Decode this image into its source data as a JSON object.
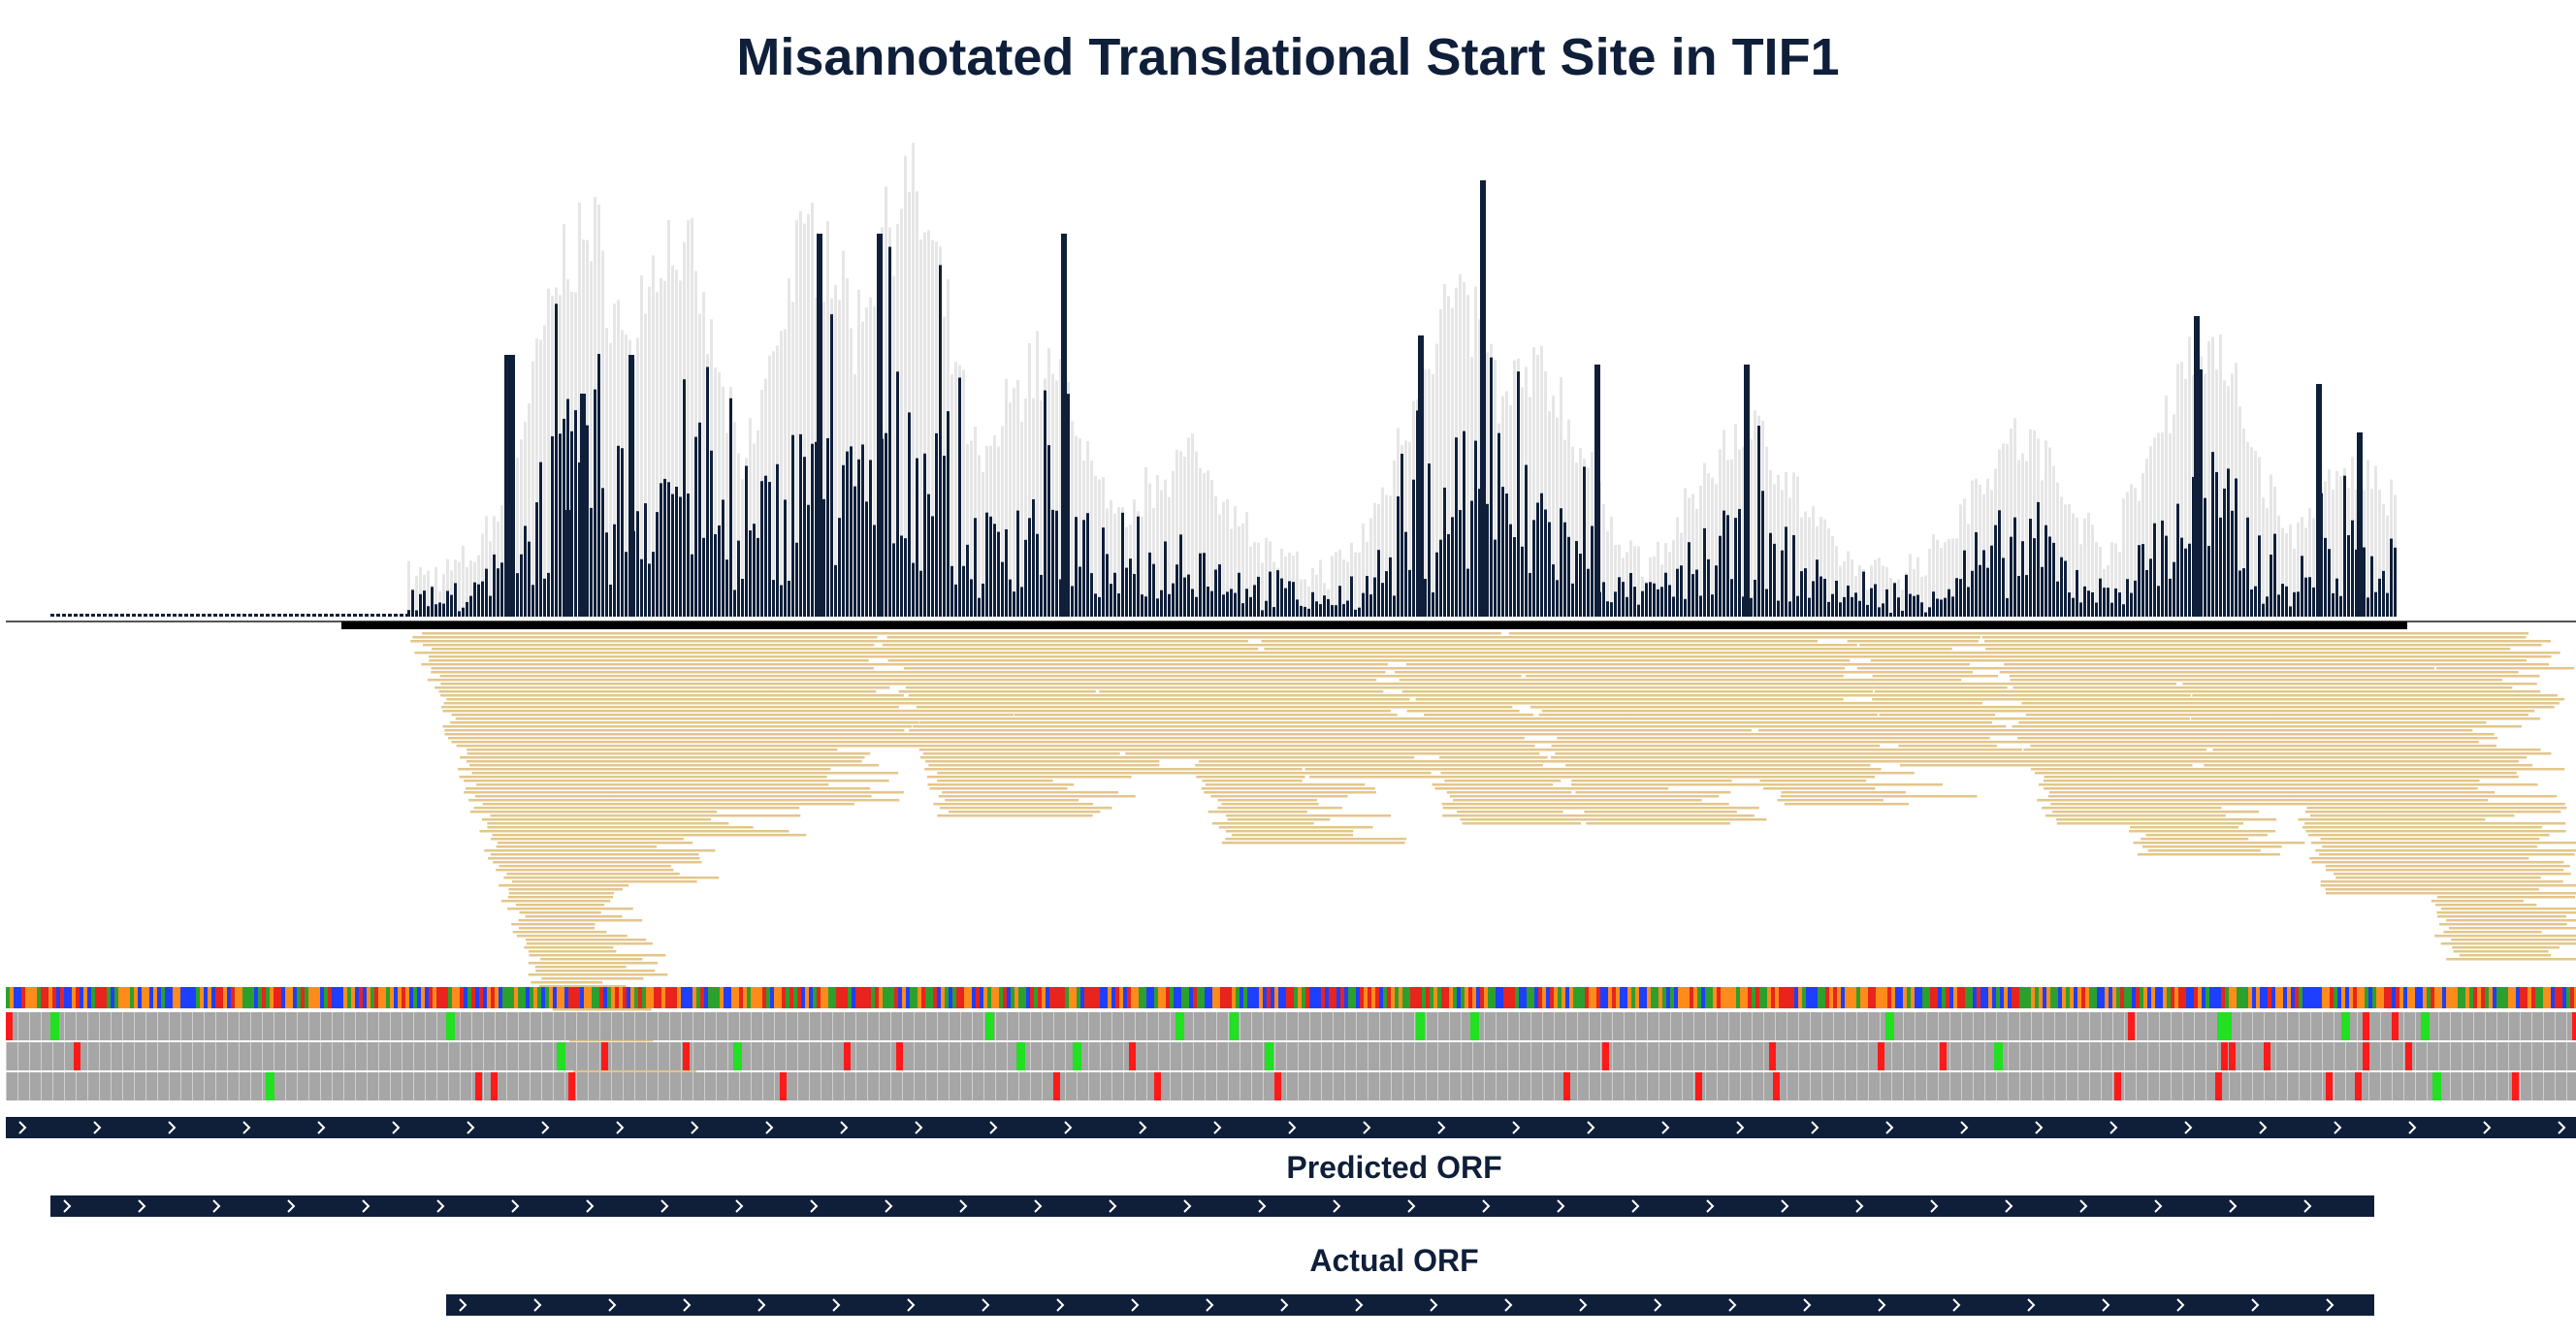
{
  "title": "Misannotated Translational Start Site in TIF1",
  "colors": {
    "navy": "#0f1f3a",
    "coverage": "#e6e6e6",
    "reads": "#e3c68a",
    "codon_gray": "#a6a6a6",
    "start_codon": "#22e022",
    "stop_codon": "#ff1a1a",
    "base_a": "#2ca02c",
    "base_c": "#1f3fff",
    "base_g": "#ff8c1a",
    "base_t": "#e8241d"
  },
  "tracks": {
    "predicted_label": "Predicted ORF",
    "actual_label": "Actual ORF"
  },
  "icons": [
    "strand-chevron-icon"
  ]
}
